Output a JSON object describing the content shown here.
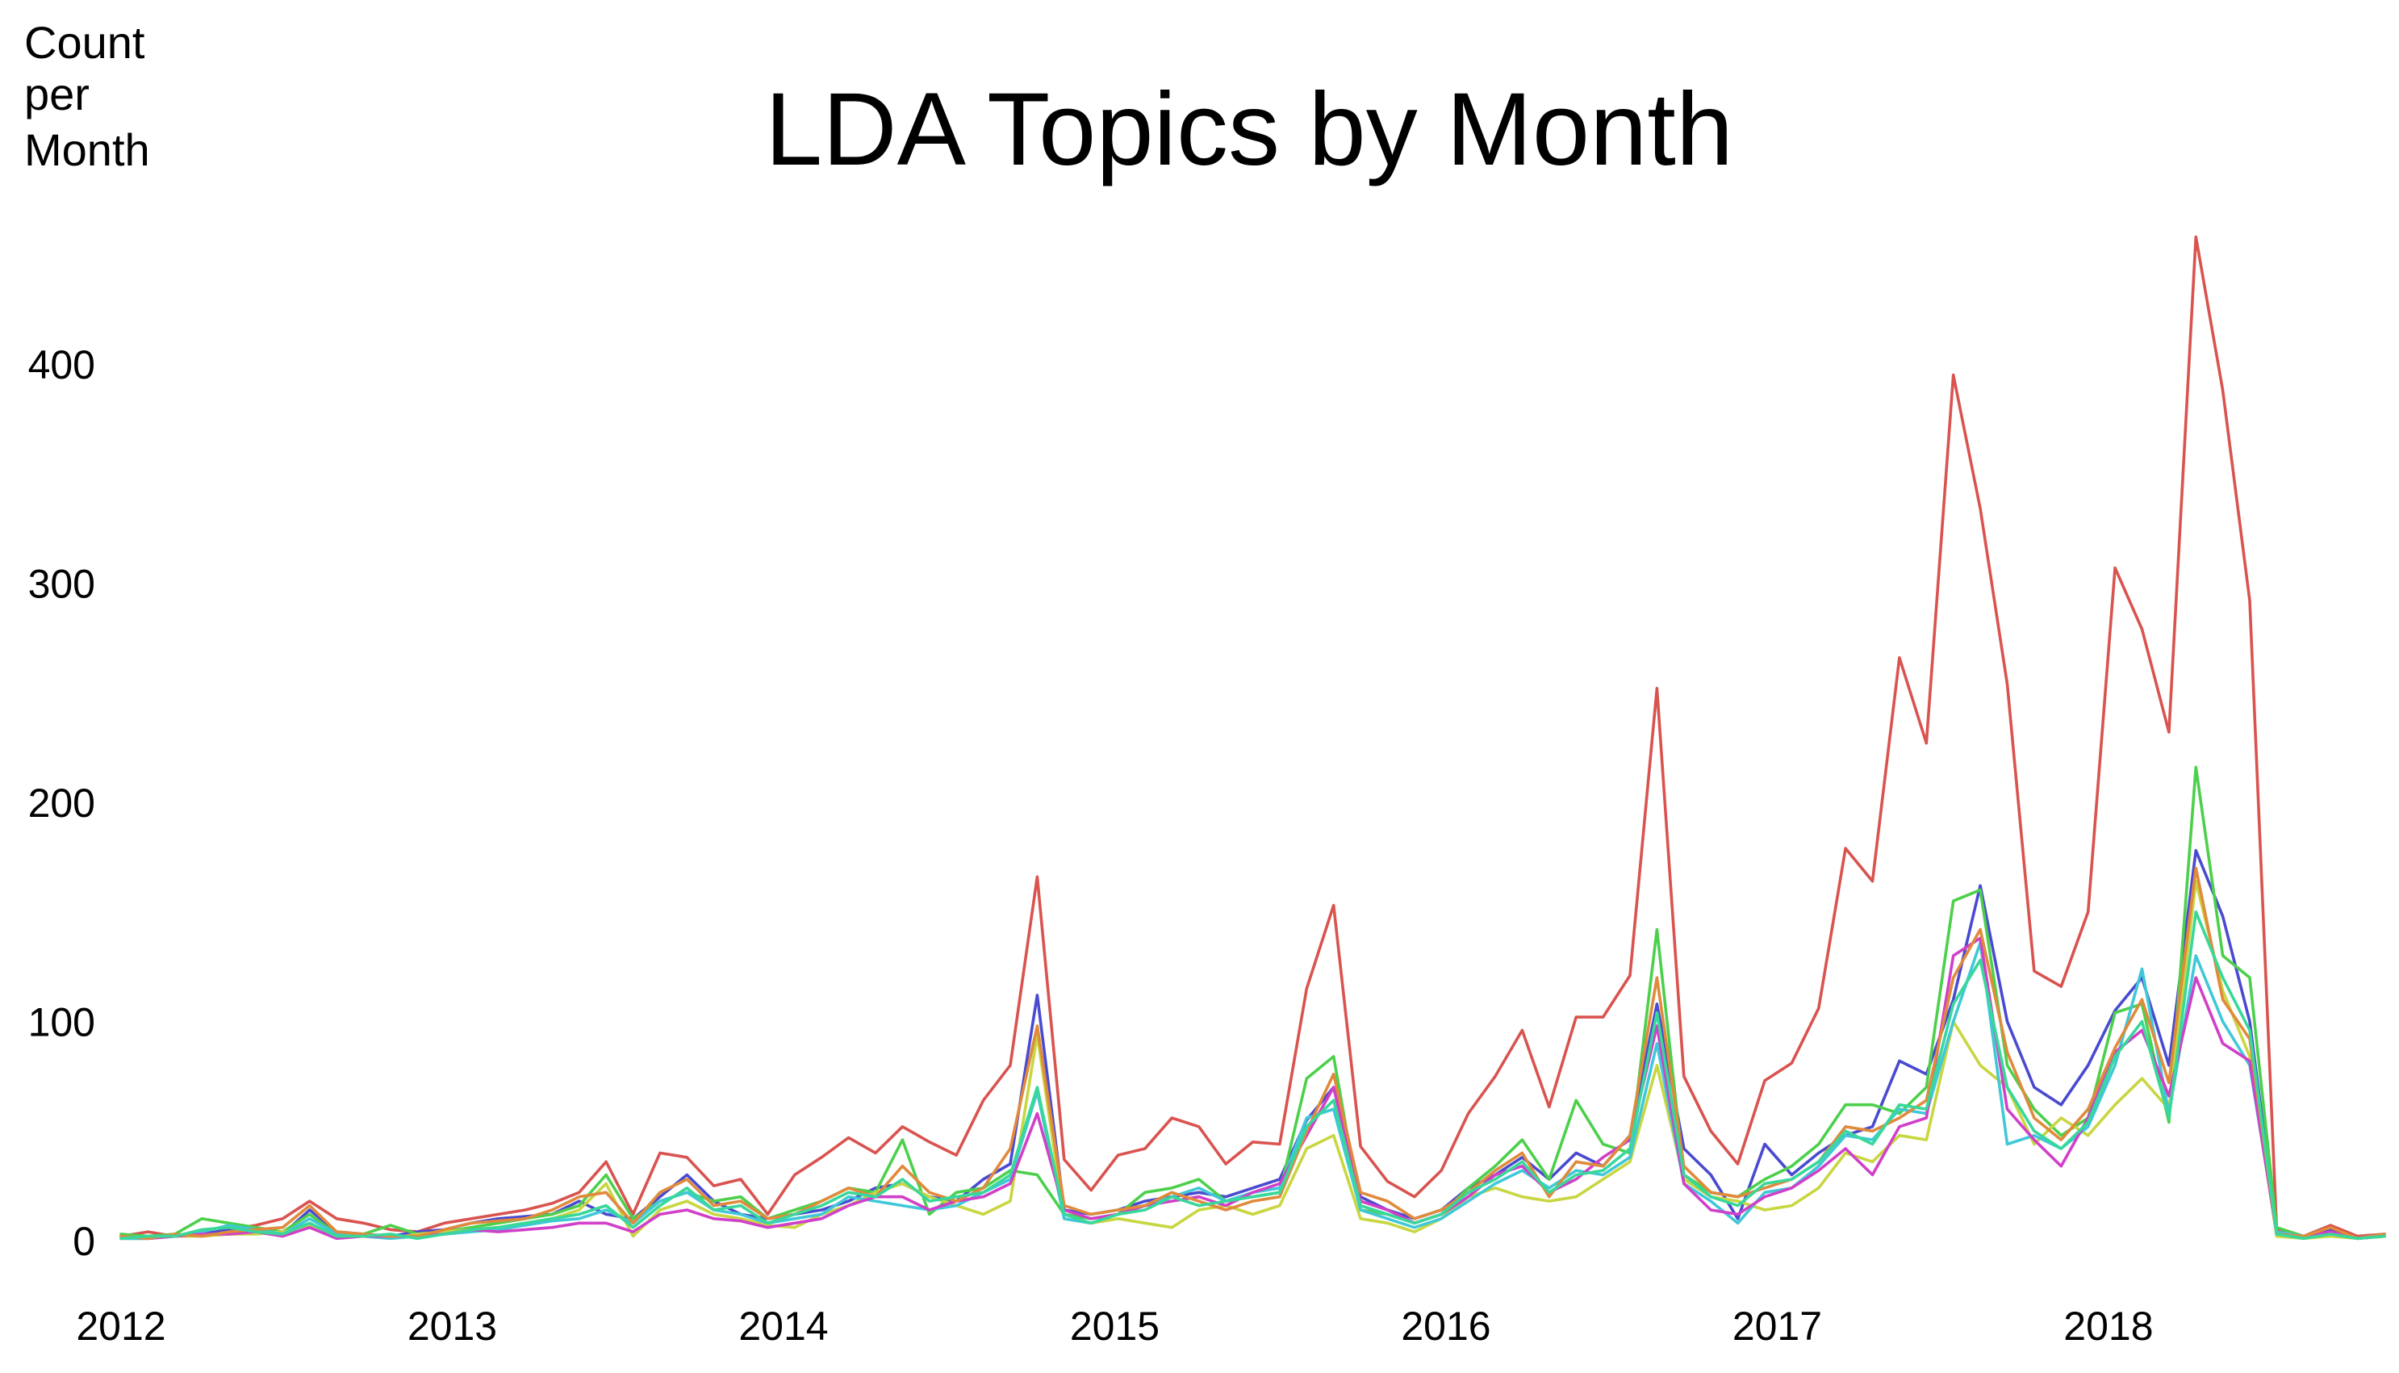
{
  "chart_data": {
    "type": "line",
    "title": "LDA  Topics  by  Month",
    "ylabel_lines": [
      "Count",
      "per",
      "Month"
    ],
    "xlabel": "",
    "x_ticks": [
      "2012",
      "2013",
      "2014",
      "2015",
      "2016",
      "2017",
      "2018"
    ],
    "y_ticks": [
      "0",
      "100",
      "200",
      "300",
      "400"
    ],
    "x_start": "2012-01",
    "x_end": "2018-11",
    "ylim": [
      -25,
      470
    ],
    "grid": false,
    "legend": "none",
    "series": [
      {
        "color": "#d9534f",
        "values": [
          2,
          4,
          2,
          3,
          5,
          7,
          10,
          18,
          10,
          8,
          5,
          4,
          8,
          10,
          12,
          14,
          17,
          22,
          36,
          12,
          40,
          38,
          25,
          28,
          12,
          30,
          38,
          47,
          40,
          52,
          45,
          39,
          64,
          80,
          166,
          37,
          23,
          39,
          42,
          56,
          52,
          35,
          45,
          44,
          115,
          153,
          43,
          27,
          20,
          32,
          58,
          75,
          96,
          61,
          102,
          102,
          121,
          252,
          75,
          50,
          35,
          73,
          81,
          106,
          179,
          164,
          266,
          227,
          395,
          334,
          254,
          123,
          116,
          150,
          307,
          279,
          232,
          458,
          388,
          292,
          5,
          2,
          7,
          2,
          3
        ]
      },
      {
        "color": "#4a4ad0",
        "values": [
          1,
          1,
          2,
          3,
          5,
          4,
          3,
          14,
          4,
          3,
          2,
          4,
          5,
          8,
          10,
          11,
          12,
          18,
          12,
          10,
          20,
          30,
          18,
          12,
          10,
          12,
          14,
          18,
          24,
          26,
          20,
          18,
          28,
          35,
          112,
          14,
          12,
          14,
          18,
          20,
          22,
          20,
          24,
          28,
          55,
          70,
          20,
          14,
          10,
          14,
          24,
          30,
          38,
          28,
          40,
          34,
          48,
          108,
          42,
          30,
          10,
          44,
          30,
          40,
          48,
          52,
          82,
          76,
          110,
          162,
          100,
          70,
          62,
          80,
          105,
          120,
          80,
          178,
          148,
          100,
          4,
          2,
          5,
          1,
          3
        ]
      },
      {
        "color": "#4cd04c",
        "values": [
          3,
          2,
          3,
          10,
          8,
          6,
          4,
          12,
          3,
          3,
          7,
          3,
          4,
          6,
          8,
          10,
          12,
          16,
          30,
          10,
          18,
          22,
          18,
          20,
          10,
          14,
          18,
          24,
          22,
          46,
          12,
          22,
          24,
          32,
          30,
          12,
          10,
          12,
          22,
          24,
          28,
          18,
          20,
          22,
          74,
          84,
          14,
          12,
          8,
          12,
          24,
          34,
          46,
          28,
          64,
          44,
          40,
          142,
          30,
          22,
          20,
          28,
          34,
          44,
          62,
          62,
          58,
          70,
          155,
          160,
          80,
          60,
          48,
          56,
          104,
          108,
          54,
          216,
          130,
          120,
          6,
          2,
          3,
          1,
          2
        ]
      },
      {
        "color": "#c8d640",
        "values": [
          1,
          1,
          2,
          2,
          3,
          3,
          4,
          7,
          3,
          2,
          1,
          3,
          4,
          5,
          6,
          8,
          10,
          14,
          26,
          2,
          14,
          18,
          12,
          10,
          7,
          6,
          12,
          16,
          22,
          26,
          20,
          16,
          12,
          18,
          94,
          10,
          8,
          10,
          8,
          6,
          14,
          16,
          12,
          16,
          42,
          48,
          10,
          8,
          4,
          10,
          20,
          24,
          20,
          18,
          20,
          28,
          36,
          80,
          28,
          20,
          18,
          14,
          16,
          24,
          40,
          36,
          48,
          46,
          100,
          80,
          70,
          44,
          56,
          48,
          62,
          74,
          60,
          164,
          114,
          84,
          2,
          1,
          2,
          1,
          2
        ]
      },
      {
        "color": "#40c8d8",
        "values": [
          1,
          1,
          2,
          4,
          7,
          5,
          3,
          10,
          3,
          2,
          1,
          2,
          3,
          4,
          5,
          7,
          9,
          10,
          14,
          8,
          18,
          22,
          14,
          12,
          8,
          10,
          12,
          20,
          18,
          16,
          14,
          16,
          22,
          28,
          68,
          10,
          8,
          12,
          16,
          20,
          24,
          18,
          22,
          24,
          56,
          60,
          14,
          10,
          6,
          10,
          18,
          26,
          32,
          24,
          32,
          30,
          38,
          90,
          26,
          18,
          8,
          22,
          24,
          34,
          48,
          46,
          60,
          58,
          100,
          136,
          44,
          48,
          42,
          52,
          80,
          124,
          58,
          130,
          100,
          80,
          4,
          2,
          3,
          1,
          3
        ]
      },
      {
        "color": "#d040c8",
        "values": [
          2,
          1,
          2,
          3,
          3,
          4,
          2,
          6,
          1,
          2,
          2,
          2,
          3,
          5,
          4,
          5,
          6,
          8,
          8,
          4,
          12,
          14,
          10,
          9,
          6,
          8,
          10,
          16,
          20,
          20,
          14,
          18,
          20,
          26,
          58,
          14,
          10,
          12,
          16,
          18,
          20,
          16,
          22,
          26,
          48,
          70,
          18,
          14,
          8,
          12,
          20,
          30,
          34,
          22,
          28,
          38,
          46,
          98,
          26,
          14,
          12,
          20,
          24,
          32,
          42,
          30,
          52,
          56,
          130,
          138,
          60,
          46,
          34,
          56,
          86,
          96,
          66,
          120,
          90,
          82,
          3,
          2,
          4,
          1,
          2
        ]
      },
      {
        "color": "#e08a3c",
        "values": [
          2,
          1,
          3,
          2,
          4,
          5,
          6,
          16,
          4,
          3,
          2,
          2,
          5,
          8,
          9,
          10,
          14,
          20,
          22,
          8,
          22,
          28,
          16,
          18,
          10,
          12,
          18,
          24,
          20,
          34,
          22,
          18,
          24,
          42,
          98,
          16,
          12,
          14,
          16,
          22,
          18,
          14,
          18,
          20,
          50,
          76,
          22,
          18,
          10,
          14,
          22,
          32,
          40,
          20,
          36,
          34,
          48,
          120,
          34,
          22,
          20,
          24,
          28,
          36,
          52,
          50,
          56,
          64,
          120,
          142,
          86,
          56,
          46,
          60,
          88,
          110,
          72,
          170,
          110,
          92,
          3,
          2,
          6,
          1,
          3
        ]
      },
      {
        "color": "#38d89a",
        "values": [
          1,
          2,
          2,
          5,
          6,
          4,
          3,
          8,
          2,
          2,
          3,
          1,
          3,
          5,
          6,
          8,
          10,
          12,
          16,
          6,
          16,
          24,
          14,
          16,
          8,
          12,
          16,
          22,
          20,
          28,
          18,
          20,
          22,
          30,
          70,
          12,
          8,
          12,
          14,
          20,
          16,
          18,
          20,
          22,
          52,
          64,
          16,
          12,
          8,
          12,
          22,
          28,
          36,
          22,
          30,
          32,
          42,
          104,
          30,
          20,
          16,
          26,
          28,
          36,
          50,
          44,
          62,
          60,
          108,
          128,
          70,
          50,
          42,
          54,
          84,
          100,
          56,
          150,
          120,
          96,
          3,
          1,
          3,
          1,
          2
        ]
      }
    ]
  }
}
